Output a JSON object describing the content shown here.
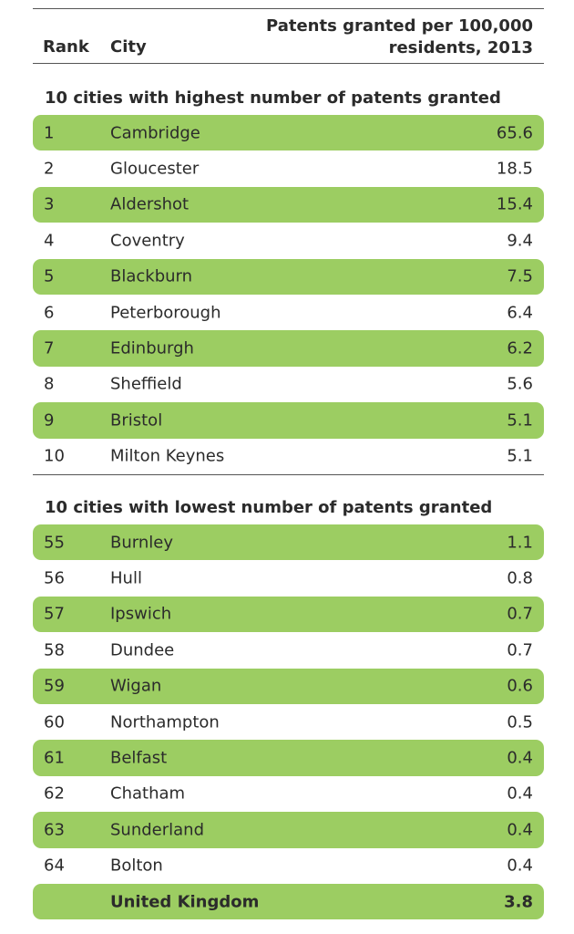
{
  "header": {
    "rank_label": "Rank",
    "city_label": "City",
    "value_label_line1": "Patents granted per 100,000",
    "value_label_line2": "residents, 2013"
  },
  "highest": {
    "title": "10 cities with highest number of patents granted",
    "rows": [
      {
        "rank": "1",
        "city": "Cambridge",
        "value": "65.6"
      },
      {
        "rank": "2",
        "city": "Gloucester",
        "value": "18.5"
      },
      {
        "rank": "3",
        "city": "Aldershot",
        "value": "15.4"
      },
      {
        "rank": "4",
        "city": "Coventry",
        "value": "9.4"
      },
      {
        "rank": "5",
        "city": "Blackburn",
        "value": "7.5"
      },
      {
        "rank": "6",
        "city": "Peterborough",
        "value": "6.4"
      },
      {
        "rank": "7",
        "city": "Edinburgh",
        "value": "6.2"
      },
      {
        "rank": "8",
        "city": "Sheffield",
        "value": "5.6"
      },
      {
        "rank": "9",
        "city": "Bristol",
        "value": "5.1"
      },
      {
        "rank": "10",
        "city": "Milton Keynes",
        "value": "5.1"
      }
    ]
  },
  "lowest": {
    "title": "10 cities with lowest number of patents granted",
    "rows": [
      {
        "rank": "55",
        "city": "Burnley",
        "value": "1.1"
      },
      {
        "rank": "56",
        "city": "Hull",
        "value": "0.8"
      },
      {
        "rank": "57",
        "city": "Ipswich",
        "value": "0.7"
      },
      {
        "rank": "58",
        "city": "Dundee",
        "value": "0.7"
      },
      {
        "rank": "59",
        "city": "Wigan",
        "value": "0.6"
      },
      {
        "rank": "60",
        "city": "Northampton",
        "value": "0.5"
      },
      {
        "rank": "61",
        "city": "Belfast",
        "value": "0.4"
      },
      {
        "rank": "62",
        "city": "Chatham",
        "value": "0.4"
      },
      {
        "rank": "63",
        "city": "Sunderland",
        "value": "0.4"
      },
      {
        "rank": "64",
        "city": "Bolton",
        "value": "0.4"
      }
    ]
  },
  "total": {
    "rank": "",
    "city": "United Kingdom",
    "value": "3.8"
  },
  "colors": {
    "highlight": "#9ccd62",
    "text": "#2b2b2b",
    "rule": "#555555"
  }
}
